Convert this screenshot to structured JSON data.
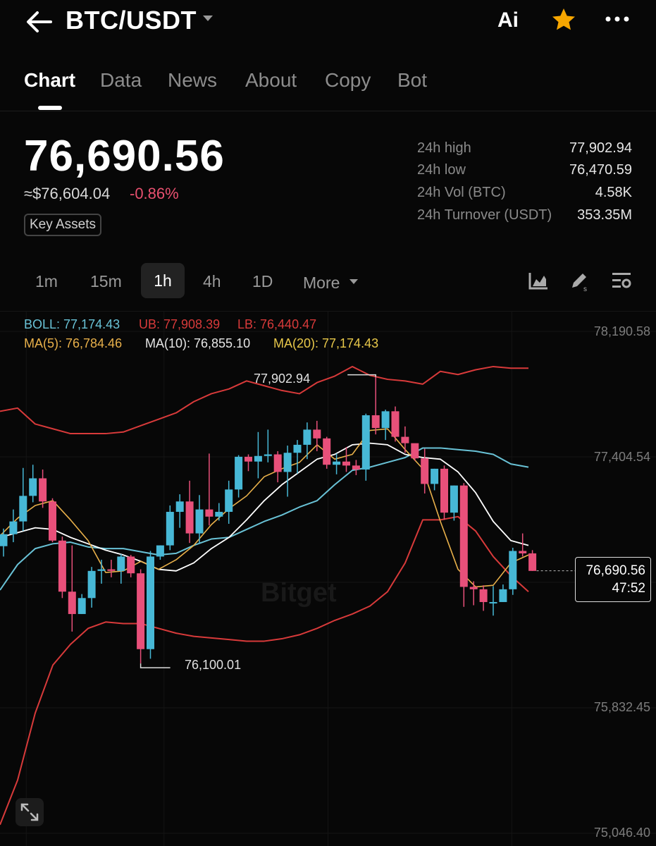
{
  "header": {
    "pair": "BTC/USDT",
    "ai_label": "Ai",
    "icons": [
      "back-arrow-icon",
      "chevron-down-icon",
      "star-icon",
      "more-dots-icon"
    ],
    "accent": "#f7a600"
  },
  "tabs": [
    "Chart",
    "Data",
    "News",
    "About",
    "Copy",
    "Bot"
  ],
  "active_tab": "Chart",
  "price": {
    "last": "76,690.56",
    "approx_usd": "≈$76,604.04",
    "change": "-0.86%",
    "badge": "Key Assets"
  },
  "stats": [
    {
      "label": "24h high",
      "value": "77,902.94"
    },
    {
      "label": "24h low",
      "value": "76,470.59"
    },
    {
      "label": "24h Vol (BTC)",
      "value": "4.58K"
    },
    {
      "label": "24h Turnover (USDT)",
      "value": "353.35M"
    }
  ],
  "intervals": [
    "1m",
    "15m",
    "1h",
    "4h",
    "1D"
  ],
  "active_interval": "1h",
  "more_label": "More",
  "indicators": {
    "boll": "BOLL: 77,174.43",
    "ub": "UB: 77,908.39",
    "lb": "LB: 76,440.47",
    "ma5": "MA(5): 76,784.46",
    "ma10": "MA(10): 76,855.10",
    "ma20": "MA(20): 77,174.43"
  },
  "chart_data": {
    "type": "candlestick",
    "y_axis_labels": [
      "78,190.58",
      "77,404.54",
      "75,832.45",
      "75,046.40"
    ],
    "ylim": [
      75046.4,
      78190.58
    ],
    "high_marker": "77,902.94",
    "low_marker": "76,100.01",
    "last_price": "76,690.56",
    "countdown": "47:52",
    "watermark": "Bitget",
    "colors": {
      "up": "#47b8d6",
      "down": "#e8507a",
      "ub": "#d83a3a",
      "lb": "#d83a3a",
      "boll": "#69c2d6",
      "ma5": "#e8b04a",
      "ma10": "#ffffff"
    },
    "candles": [
      {
        "o": 76845,
        "h": 76955,
        "l": 76780,
        "c": 76920
      },
      {
        "o": 76920,
        "h": 77075,
        "l": 76870,
        "c": 77000
      },
      {
        "o": 77000,
        "h": 77335,
        "l": 76940,
        "c": 77160
      },
      {
        "o": 77160,
        "h": 77355,
        "l": 77120,
        "c": 77270
      },
      {
        "o": 77270,
        "h": 77325,
        "l": 77085,
        "c": 77125
      },
      {
        "o": 77125,
        "h": 77145,
        "l": 76870,
        "c": 76880
      },
      {
        "o": 76880,
        "h": 76905,
        "l": 76520,
        "c": 76560
      },
      {
        "o": 76560,
        "h": 76850,
        "l": 76310,
        "c": 76420
      },
      {
        "o": 76420,
        "h": 76545,
        "l": 76420,
        "c": 76520
      },
      {
        "o": 76520,
        "h": 76715,
        "l": 76460,
        "c": 76690
      },
      {
        "o": 76690,
        "h": 76760,
        "l": 76610,
        "c": 76700
      },
      {
        "o": 76700,
        "h": 76760,
        "l": 76650,
        "c": 76690
      },
      {
        "o": 76690,
        "h": 76795,
        "l": 76610,
        "c": 76780
      },
      {
        "o": 76780,
        "h": 76790,
        "l": 76650,
        "c": 76675
      },
      {
        "o": 76675,
        "h": 76700,
        "l": 76110,
        "c": 76200
      },
      {
        "o": 76200,
        "h": 76815,
        "l": 76140,
        "c": 76780
      },
      {
        "o": 76780,
        "h": 76850,
        "l": 76760,
        "c": 76850
      },
      {
        "o": 76850,
        "h": 77100,
        "l": 76820,
        "c": 77060
      },
      {
        "o": 77060,
        "h": 77170,
        "l": 76960,
        "c": 77125
      },
      {
        "o": 77125,
        "h": 77255,
        "l": 76865,
        "c": 76925
      },
      {
        "o": 76925,
        "h": 77165,
        "l": 76865,
        "c": 77075
      },
      {
        "o": 77075,
        "h": 77425,
        "l": 76975,
        "c": 77030
      },
      {
        "o": 77030,
        "h": 77115,
        "l": 77005,
        "c": 77060
      },
      {
        "o": 77060,
        "h": 77255,
        "l": 76985,
        "c": 77200
      },
      {
        "o": 77200,
        "h": 77415,
        "l": 77150,
        "c": 77405
      },
      {
        "o": 77405,
        "h": 77420,
        "l": 77315,
        "c": 77375
      },
      {
        "o": 77375,
        "h": 77560,
        "l": 77270,
        "c": 77410
      },
      {
        "o": 77410,
        "h": 77575,
        "l": 77370,
        "c": 77420
      },
      {
        "o": 77420,
        "h": 77440,
        "l": 77245,
        "c": 77310
      },
      {
        "o": 77310,
        "h": 77475,
        "l": 77155,
        "c": 77430
      },
      {
        "o": 77430,
        "h": 77510,
        "l": 77300,
        "c": 77480
      },
      {
        "o": 77480,
        "h": 77620,
        "l": 77390,
        "c": 77575
      },
      {
        "o": 77575,
        "h": 77630,
        "l": 77440,
        "c": 77520
      },
      {
        "o": 77520,
        "h": 77530,
        "l": 77330,
        "c": 77355
      },
      {
        "o": 77355,
        "h": 77425,
        "l": 77295,
        "c": 77375
      },
      {
        "o": 77375,
        "h": 77465,
        "l": 77310,
        "c": 77350
      },
      {
        "o": 77350,
        "h": 77385,
        "l": 77290,
        "c": 77325
      },
      {
        "o": 77325,
        "h": 77675,
        "l": 77255,
        "c": 77665
      },
      {
        "o": 77665,
        "h": 77905,
        "l": 77545,
        "c": 77585
      },
      {
        "o": 77585,
        "h": 77700,
        "l": 77510,
        "c": 77690
      },
      {
        "o": 77690,
        "h": 77720,
        "l": 77500,
        "c": 77530
      },
      {
        "o": 77530,
        "h": 77595,
        "l": 77430,
        "c": 77490
      },
      {
        "o": 77490,
        "h": 77460,
        "l": 77380,
        "c": 77395
      },
      {
        "o": 77395,
        "h": 77455,
        "l": 77175,
        "c": 77235
      },
      {
        "o": 77235,
        "h": 77330,
        "l": 77195,
        "c": 77330
      },
      {
        "o": 77330,
        "h": 77350,
        "l": 77010,
        "c": 77055
      },
      {
        "o": 77055,
        "h": 77225,
        "l": 77005,
        "c": 77225
      },
      {
        "o": 77225,
        "h": 77240,
        "l": 76465,
        "c": 76590
      },
      {
        "o": 76590,
        "h": 76625,
        "l": 76475,
        "c": 76575
      },
      {
        "o": 76575,
        "h": 76600,
        "l": 76440,
        "c": 76495
      },
      {
        "o": 76495,
        "h": 76595,
        "l": 76410,
        "c": 76495
      },
      {
        "o": 76495,
        "h": 76605,
        "l": 76495,
        "c": 76575
      },
      {
        "o": 76575,
        "h": 76835,
        "l": 76540,
        "c": 76815
      },
      {
        "o": 76815,
        "h": 76925,
        "l": 76780,
        "c": 76800
      },
      {
        "o": 76800,
        "h": 76820,
        "l": 76690,
        "c": 76690
      }
    ],
    "ub_line": [
      77690,
      77710,
      77610,
      77580,
      77550,
      77550,
      77550,
      77560,
      77600,
      77640,
      77680,
      77750,
      77800,
      77830,
      77880,
      77850,
      77820,
      77800,
      77870,
      77910,
      77970,
      77915,
      77890,
      77880,
      77860,
      77940,
      77920,
      77950,
      77970,
      77960,
      77960
    ],
    "lb_line": [
      75100,
      75380,
      75800,
      76100,
      76230,
      76330,
      76370,
      76360,
      76360,
      76330,
      76300,
      76280,
      76270,
      76260,
      76250,
      76250,
      76265,
      76290,
      76330,
      76380,
      76420,
      76470,
      76560,
      76740,
      77010,
      77010,
      77030,
      76940,
      76780,
      76660,
      76560
    ],
    "boll_line": [
      76570,
      76730,
      76830,
      76860,
      76870,
      76840,
      76830,
      76830,
      76810,
      76790,
      76800,
      76850,
      76890,
      76900,
      76950,
      77000,
      77040,
      77090,
      77130,
      77230,
      77320,
      77340,
      77370,
      77400,
      77460,
      77460,
      77450,
      77440,
      77420,
      77360,
      77340
    ],
    "ma10_line": [
      76900,
      76930,
      76960,
      76950,
      76900,
      76860,
      76820,
      76790,
      76750,
      76700,
      76690,
      76740,
      76830,
      76900,
      77010,
      77130,
      77230,
      77310,
      77390,
      77420,
      77480,
      77490,
      77480,
      77420,
      77400,
      77390,
      77310,
      77180,
      77000,
      76880,
      76850
    ],
    "ma5_line": [
      76910,
      77020,
      77100,
      77130,
      77010,
      76880,
      76680,
      76690,
      76750,
      76700,
      76760,
      76850,
      76980,
      77080,
      77160,
      77280,
      77330,
      77370,
      77480,
      77390,
      77420,
      77570,
      77580,
      77450,
      77330,
      77000,
      76700,
      76590,
      76600,
      76740,
      76790
    ]
  }
}
